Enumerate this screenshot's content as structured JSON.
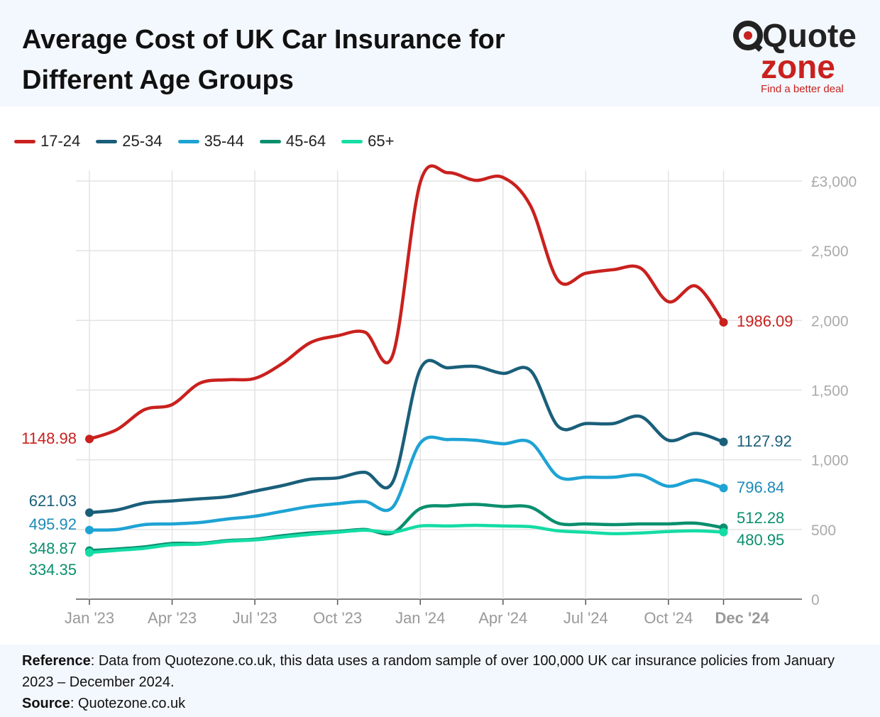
{
  "title": "Average Cost of UK Car Insurance for Different Age Groups",
  "logo": {
    "line1": "Quote",
    "line2": "zone",
    "tagline": "Find a better deal"
  },
  "footer": {
    "ref_label": "Reference",
    "ref_text": ": Data from Quotezone.co.uk, this data uses a random sample of over 100,000 UK car insurance policies from January 2023 – December 2024.",
    "source_label": "Source",
    "source_text": ": Quotezone.co.uk"
  },
  "chart_data": {
    "type": "line",
    "title": "Average Cost of UK Car Insurance for Different Age Groups",
    "x": [
      "Jan 2023",
      "Feb 2023",
      "Mar 2023",
      "Apr 2023",
      "May 2023",
      "Jun 2023",
      "Jul 2023",
      "Aug 2023",
      "Sep 2023",
      "Oct 2023",
      "Nov 2023",
      "Dec 2023",
      "Jan 2024",
      "Feb 2024",
      "Mar 2024",
      "Apr 2024",
      "May 2024",
      "Jun 2024",
      "Jul 2024",
      "Aug 2024",
      "Sep 2024",
      "Oct 2024",
      "Nov 2024",
      "Dec 2024"
    ],
    "x_ticks": [
      {
        "i": 0,
        "label": "Jan '23"
      },
      {
        "i": 3,
        "label": "Apr '23"
      },
      {
        "i": 6,
        "label": "Jul '23"
      },
      {
        "i": 9,
        "label": "Oct '23"
      },
      {
        "i": 12,
        "label": "Jan '24"
      },
      {
        "i": 15,
        "label": "Apr '24"
      },
      {
        "i": 18,
        "label": "Jul '24"
      },
      {
        "i": 21,
        "label": "Oct '24"
      },
      {
        "i": 23,
        "label": "Dec '24",
        "bold": true
      }
    ],
    "y_ticks": [
      {
        "v": 0,
        "label": "0"
      },
      {
        "v": 500,
        "label": "500"
      },
      {
        "v": 1000,
        "label": "1,000"
      },
      {
        "v": 1500,
        "label": "1,500"
      },
      {
        "v": 2000,
        "label": "2,000"
      },
      {
        "v": 2500,
        "label": "2,500"
      },
      {
        "v": 3000,
        "label": "£3,000"
      }
    ],
    "ylim": [
      0,
      3000
    ],
    "legend_position": "top-left",
    "series": [
      {
        "name": "17-24",
        "color": "#c9211e",
        "label_color": "#c9211e",
        "start_label": "1148.98",
        "end_label": "1986.09",
        "values": [
          1148.98,
          1217,
          1360,
          1396,
          1549,
          1574,
          1584,
          1691,
          1839,
          1890,
          1915,
          1750,
          2990,
          3060,
          3005,
          3026,
          2822,
          2287,
          2338,
          2364,
          2374,
          2134,
          2246,
          1986.09
        ]
      },
      {
        "name": "25-34",
        "color": "#1a5f7a",
        "label_color": "#1a5f7a",
        "start_label": "621.03",
        "end_label": "1127.92",
        "values": [
          621.03,
          640,
          690,
          705,
          720,
          735,
          775,
          815,
          860,
          870,
          910,
          840,
          1650,
          1660,
          1670,
          1620,
          1640,
          1240,
          1260,
          1260,
          1310,
          1140,
          1190,
          1127.92
        ]
      },
      {
        "name": "35-44",
        "color": "#1ea3d4",
        "label_color": "#1d8ab8",
        "start_label": "495.92",
        "end_label": "796.84",
        "values": [
          495.92,
          500,
          535,
          540,
          550,
          575,
          595,
          630,
          665,
          685,
          700,
          660,
          1120,
          1145,
          1140,
          1115,
          1125,
          880,
          875,
          875,
          890,
          810,
          855,
          796.84
        ]
      },
      {
        "name": "45-64",
        "color": "#0a8f6e",
        "label_color": "#0a8f6e",
        "start_label": "348.87",
        "end_label": "512.28",
        "values": [
          348.87,
          360,
          375,
          400,
          400,
          420,
          430,
          455,
          475,
          485,
          500,
          475,
          650,
          670,
          680,
          665,
          660,
          545,
          540,
          535,
          540,
          540,
          545,
          512.28
        ]
      },
      {
        "name": "65+",
        "color": "#14dca5",
        "label_color": "#0a8f6e",
        "start_label": "334.35",
        "end_label": "480.95",
        "values": [
          334.35,
          350,
          365,
          390,
          395,
          415,
          425,
          445,
          465,
          480,
          495,
          480,
          525,
          525,
          530,
          525,
          520,
          490,
          480,
          470,
          475,
          485,
          490,
          480.95
        ]
      }
    ]
  }
}
